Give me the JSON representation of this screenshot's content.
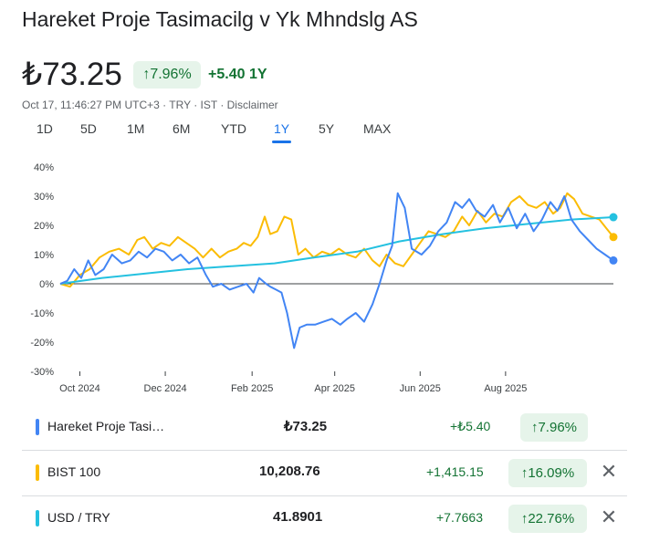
{
  "header": {
    "title": "Hareket Proje Tasimacilg v Yk Mhndslg AS",
    "price": "₺73.25",
    "change_pct": "↑7.96%",
    "change_abs": "+5.40",
    "change_period": "1Y",
    "meta": "Oct 17, 11:46:27 PM UTC+3 · TRY · IST · Disclaimer"
  },
  "tabs": [
    {
      "label": "1D"
    },
    {
      "label": "5D"
    },
    {
      "label": "1M"
    },
    {
      "label": "6M"
    },
    {
      "label": "YTD"
    },
    {
      "label": "1Y"
    },
    {
      "label": "5Y"
    },
    {
      "label": "MAX"
    }
  ],
  "active_tab": "1Y",
  "colors": {
    "blue": "#4285f4",
    "yellow": "#fbbc04",
    "teal": "#24c1e0",
    "green": "#137333",
    "green_bg": "#e6f4ea"
  },
  "chart_data": {
    "type": "line",
    "y_unit": "%",
    "ylim": [
      -30,
      40
    ],
    "y_ticks": [
      "40%",
      "30%",
      "20%",
      "10%",
      "0%",
      "-10%",
      "-20%",
      "-30%"
    ],
    "x_ticks": [
      "Oct 2024",
      "Dec 2024",
      "Feb 2025",
      "Apr 2025",
      "Jun 2025",
      "Aug 2025"
    ],
    "x_range": [
      "2024-09-17",
      "2025-10-17"
    ],
    "series": [
      {
        "name": "Hareket Proje Tasimacilg v Yk Mhndslg AS",
        "color": "#4285f4",
        "points": [
          [
            "2024-09-17",
            0
          ],
          [
            "2024-09-22",
            1
          ],
          [
            "2024-09-27",
            5
          ],
          [
            "2024-10-02",
            2
          ],
          [
            "2024-10-07",
            8
          ],
          [
            "2024-10-12",
            3
          ],
          [
            "2024-10-18",
            5
          ],
          [
            "2024-10-24",
            10
          ],
          [
            "2024-10-31",
            7
          ],
          [
            "2024-11-06",
            8
          ],
          [
            "2024-11-12",
            11
          ],
          [
            "2024-11-18",
            9
          ],
          [
            "2024-11-24",
            12
          ],
          [
            "2024-11-30",
            11
          ],
          [
            "2024-12-06",
            8
          ],
          [
            "2024-12-12",
            10
          ],
          [
            "2024-12-18",
            7
          ],
          [
            "2024-12-24",
            9
          ],
          [
            "2024-12-30",
            3
          ],
          [
            "2025-01-04",
            -1
          ],
          [
            "2025-01-10",
            0
          ],
          [
            "2025-01-16",
            -2
          ],
          [
            "2025-01-22",
            -1
          ],
          [
            "2025-01-28",
            0
          ],
          [
            "2025-02-02",
            -3
          ],
          [
            "2025-02-06",
            2
          ],
          [
            "2025-02-11",
            0
          ],
          [
            "2025-02-14",
            -1
          ],
          [
            "2025-02-18",
            -2
          ],
          [
            "2025-02-22",
            -3
          ],
          [
            "2025-02-26",
            -10
          ],
          [
            "2025-03-03",
            -22
          ],
          [
            "2025-03-07",
            -15
          ],
          [
            "2025-03-12",
            -14
          ],
          [
            "2025-03-18",
            -14
          ],
          [
            "2025-03-24",
            -13
          ],
          [
            "2025-03-30",
            -12
          ],
          [
            "2025-04-05",
            -14
          ],
          [
            "2025-04-10",
            -12
          ],
          [
            "2025-04-16",
            -10
          ],
          [
            "2025-04-22",
            -13
          ],
          [
            "2025-04-28",
            -7
          ],
          [
            "2025-05-03",
            0
          ],
          [
            "2025-05-08",
            8
          ],
          [
            "2025-05-12",
            13
          ],
          [
            "2025-05-16",
            31
          ],
          [
            "2025-05-21",
            26
          ],
          [
            "2025-05-26",
            12
          ],
          [
            "2025-06-02",
            10
          ],
          [
            "2025-06-08",
            13
          ],
          [
            "2025-06-14",
            18
          ],
          [
            "2025-06-20",
            21
          ],
          [
            "2025-06-26",
            28
          ],
          [
            "2025-07-01",
            26
          ],
          [
            "2025-07-06",
            29
          ],
          [
            "2025-07-11",
            25
          ],
          [
            "2025-07-17",
            23
          ],
          [
            "2025-07-23",
            27
          ],
          [
            "2025-07-28",
            21
          ],
          [
            "2025-08-03",
            26
          ],
          [
            "2025-08-09",
            19
          ],
          [
            "2025-08-15",
            24
          ],
          [
            "2025-08-21",
            18
          ],
          [
            "2025-08-27",
            22
          ],
          [
            "2025-09-02",
            28
          ],
          [
            "2025-09-07",
            25
          ],
          [
            "2025-09-12",
            30
          ],
          [
            "2025-09-17",
            22
          ],
          [
            "2025-09-23",
            18
          ],
          [
            "2025-09-29",
            15
          ],
          [
            "2025-10-05",
            12
          ],
          [
            "2025-10-11",
            10
          ],
          [
            "2025-10-17",
            8
          ]
        ]
      },
      {
        "name": "BIST 100",
        "color": "#fbbc04",
        "points": [
          [
            "2024-09-17",
            0
          ],
          [
            "2024-09-24",
            -1
          ],
          [
            "2024-10-01",
            3
          ],
          [
            "2024-10-08",
            5
          ],
          [
            "2024-10-15",
            9
          ],
          [
            "2024-10-22",
            11
          ],
          [
            "2024-10-29",
            12
          ],
          [
            "2024-11-05",
            10
          ],
          [
            "2024-11-11",
            15
          ],
          [
            "2024-11-16",
            16
          ],
          [
            "2024-11-22",
            12
          ],
          [
            "2024-11-28",
            14
          ],
          [
            "2024-12-04",
            13
          ],
          [
            "2024-12-10",
            16
          ],
          [
            "2024-12-16",
            14
          ],
          [
            "2024-12-22",
            12
          ],
          [
            "2024-12-28",
            9
          ],
          [
            "2025-01-03",
            12
          ],
          [
            "2025-01-09",
            9
          ],
          [
            "2025-01-15",
            11
          ],
          [
            "2025-01-21",
            12
          ],
          [
            "2025-01-26",
            14
          ],
          [
            "2025-01-31",
            13
          ],
          [
            "2025-02-05",
            16
          ],
          [
            "2025-02-10",
            23
          ],
          [
            "2025-02-14",
            17
          ],
          [
            "2025-02-19",
            18
          ],
          [
            "2025-02-24",
            23
          ],
          [
            "2025-03-01",
            22
          ],
          [
            "2025-03-06",
            10
          ],
          [
            "2025-03-11",
            12
          ],
          [
            "2025-03-17",
            9
          ],
          [
            "2025-03-23",
            11
          ],
          [
            "2025-03-29",
            10
          ],
          [
            "2025-04-04",
            12
          ],
          [
            "2025-04-10",
            10
          ],
          [
            "2025-04-16",
            9
          ],
          [
            "2025-04-22",
            12
          ],
          [
            "2025-04-28",
            8
          ],
          [
            "2025-05-03",
            6
          ],
          [
            "2025-05-08",
            10
          ],
          [
            "2025-05-14",
            7
          ],
          [
            "2025-05-20",
            6
          ],
          [
            "2025-05-26",
            10
          ],
          [
            "2025-06-01",
            14
          ],
          [
            "2025-06-07",
            18
          ],
          [
            "2025-06-13",
            17
          ],
          [
            "2025-06-19",
            16
          ],
          [
            "2025-06-25",
            18
          ],
          [
            "2025-07-01",
            23
          ],
          [
            "2025-07-06",
            20
          ],
          [
            "2025-07-12",
            25
          ],
          [
            "2025-07-18",
            21
          ],
          [
            "2025-07-24",
            24
          ],
          [
            "2025-07-30",
            23
          ],
          [
            "2025-08-05",
            28
          ],
          [
            "2025-08-11",
            30
          ],
          [
            "2025-08-17",
            27
          ],
          [
            "2025-08-23",
            26
          ],
          [
            "2025-08-29",
            28
          ],
          [
            "2025-09-04",
            24
          ],
          [
            "2025-09-09",
            26
          ],
          [
            "2025-09-14",
            31
          ],
          [
            "2025-09-19",
            29
          ],
          [
            "2025-09-25",
            24
          ],
          [
            "2025-10-01",
            23
          ],
          [
            "2025-10-07",
            22
          ],
          [
            "2025-10-12",
            19
          ],
          [
            "2025-10-17",
            16
          ]
        ]
      },
      {
        "name": "USD / TRY",
        "color": "#24c1e0",
        "points": [
          [
            "2024-09-17",
            0
          ],
          [
            "2024-10-17",
            2
          ],
          [
            "2024-11-17",
            3.5
          ],
          [
            "2024-12-17",
            5
          ],
          [
            "2025-01-17",
            6
          ],
          [
            "2025-02-17",
            7
          ],
          [
            "2025-03-17",
            9
          ],
          [
            "2025-04-17",
            11
          ],
          [
            "2025-05-17",
            14.5
          ],
          [
            "2025-06-17",
            17
          ],
          [
            "2025-07-17",
            19
          ],
          [
            "2025-08-17",
            20.5
          ],
          [
            "2025-09-17",
            22
          ],
          [
            "2025-10-17",
            22.8
          ]
        ]
      }
    ]
  },
  "table": {
    "rows": [
      {
        "name": "Hareket Proje Tasi…",
        "value": "₺73.25",
        "change": "+₺5.40",
        "pct": "↑7.96%",
        "color": "#4285f4",
        "closable": false
      },
      {
        "name": "BIST 100",
        "value": "10,208.76",
        "change": "+1,415.15",
        "pct": "↑16.09%",
        "color": "#fbbc04",
        "closable": true,
        "close_label": "✕"
      },
      {
        "name": "USD / TRY",
        "value": "41.8901",
        "change": "+7.7663",
        "pct": "↑22.76%",
        "color": "#24c1e0",
        "closable": true,
        "close_label": "✕"
      }
    ]
  }
}
